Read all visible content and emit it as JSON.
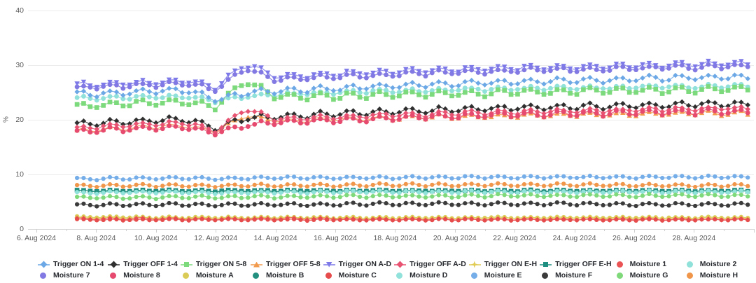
{
  "chart_data": {
    "type": "line",
    "title": "",
    "ylabel": "%",
    "ylim": [
      0,
      40
    ],
    "grid": "horizontal",
    "legend_position": "bottom",
    "y_ticks": [
      0,
      10,
      20,
      30,
      40
    ],
    "x_tick_days": [
      6,
      8,
      10,
      12,
      14,
      16,
      18,
      20,
      22,
      24,
      26,
      28
    ],
    "x_tick_labels": [
      "6. Aug 2024",
      "8. Aug 2024",
      "10. Aug 2024",
      "12. Aug 2024",
      "14. Aug 2024",
      "16. Aug 2024",
      "18. Aug 2024",
      "20. Aug 2024",
      "22. Aug 2024",
      "24. Aug 2024",
      "26. Aug 2024",
      "28. Aug 2024"
    ],
    "x_axis_range_days": [
      5.7,
      30.1
    ],
    "data_days": [
      7,
      8,
      9,
      10,
      11,
      12,
      13,
      14,
      15,
      16,
      17,
      18,
      19,
      20,
      21,
      22,
      23,
      24,
      25,
      26,
      27,
      28,
      29
    ],
    "data_start_day": 7.36,
    "data_end_day": 29.9,
    "marker_step_days": 0.22,
    "event_note": "spike in Trigger ON A-D / ON 5-8 / OFF A-D and dip in 1-4 series around 13. Aug 2024",
    "series": [
      {
        "name": "Trigger ON 1-4",
        "color": "#6BA8E5",
        "marker": "diamond",
        "legend_symbol": "line-marker",
        "daily_osc": 0.5,
        "values": [
          24.6,
          24.8,
          25.0,
          25.2,
          25.4,
          23.7,
          24.9,
          25.3,
          25.5,
          25.7,
          26.0,
          26.2,
          26.4,
          26.6,
          26.8,
          26.9,
          27.1,
          27.2,
          27.3,
          27.5,
          27.6,
          27.7,
          27.8
        ]
      },
      {
        "name": "Trigger OFF 1-4",
        "color": "#2F2F2F",
        "marker": "diamond",
        "legend_symbol": "line-marker",
        "daily_osc": 0.5,
        "values": [
          19.1,
          19.4,
          19.6,
          19.9,
          20.1,
          18.4,
          20.3,
          20.6,
          20.8,
          21.1,
          21.3,
          21.5,
          21.7,
          21.9,
          22.0,
          22.2,
          22.3,
          22.4,
          22.5,
          22.6,
          22.7,
          22.8,
          22.9
        ]
      },
      {
        "name": "Trigger ON 5-8",
        "color": "#7CD97C",
        "marker": "square",
        "legend_symbol": "line-marker",
        "daily_osc": 0.55,
        "values": [
          22.5,
          22.7,
          22.9,
          23.1,
          23.3,
          22.3,
          27.2,
          24.2,
          24.2,
          24.3,
          24.5,
          24.6,
          24.7,
          24.8,
          24.9,
          25.0,
          25.1,
          25.2,
          25.3,
          25.4,
          25.4,
          25.5,
          25.6
        ]
      },
      {
        "name": "Trigger OFF 5-8",
        "color": "#F29B4E",
        "marker": "triangle-up",
        "legend_symbol": "line-marker",
        "daily_osc": 0.4,
        "values": [
          17.9,
          18.2,
          18.5,
          18.7,
          18.9,
          17.8,
          20.9,
          19.8,
          19.9,
          20.1,
          20.2,
          20.4,
          20.5,
          20.6,
          20.7,
          20.8,
          20.9,
          21.0,
          21.0,
          21.1,
          21.1,
          21.2,
          21.2
        ]
      },
      {
        "name": "Trigger ON A-D",
        "color": "#7D79E8",
        "marker": "triangle-down",
        "legend_symbol": "line-marker",
        "daily_osc": 0.45,
        "values": [
          26.3,
          26.5,
          26.7,
          26.9,
          27.1,
          25.9,
          30.2,
          27.9,
          28.1,
          28.4,
          28.6,
          28.8,
          29.0,
          29.2,
          29.3,
          29.5,
          29.6,
          29.7,
          29.8,
          29.9,
          30.0,
          30.1,
          30.3
        ]
      },
      {
        "name": "Trigger OFF A-D",
        "color": "#E85372",
        "marker": "diamond",
        "legend_symbol": "line-marker",
        "daily_osc": 0.4,
        "values": [
          18.4,
          18.7,
          19.0,
          19.2,
          19.4,
          18.0,
          22.0,
          20.2,
          20.3,
          20.5,
          20.7,
          20.9,
          21.0,
          21.2,
          21.3,
          21.4,
          21.5,
          21.6,
          21.7,
          21.8,
          21.9,
          22.0,
          22.1
        ]
      },
      {
        "name": "Trigger ON E-H",
        "color": "#E0CC55",
        "marker": "star4",
        "legend_symbol": "line-marker",
        "daily_osc": 0.1,
        "values": [
          2.0,
          2.0,
          2.0,
          2.0,
          2.0,
          2.0,
          2.0,
          2.0,
          2.0,
          2.0,
          2.0,
          2.0,
          2.0,
          2.0,
          2.0,
          2.0,
          2.0,
          2.0,
          2.0,
          2.0,
          2.0,
          2.0,
          2.0
        ]
      },
      {
        "name": "Trigger OFF E-H",
        "color": "#1E8E80",
        "marker": "square",
        "legend_symbol": "line-marker",
        "daily_osc": 0.12,
        "values": [
          7.0,
          7.0,
          7.0,
          7.0,
          7.0,
          7.0,
          7.0,
          7.0,
          7.0,
          7.0,
          7.0,
          7.0,
          7.0,
          7.0,
          7.0,
          7.0,
          7.0,
          7.0,
          7.0,
          7.0,
          7.0,
          7.0,
          7.0
        ]
      },
      {
        "name": "Moisture 1",
        "color": "#EA5455",
        "marker": "star4",
        "legend_symbol": "circle",
        "daily_osc": 0.15,
        "values": [
          1.9,
          1.9,
          1.9,
          1.9,
          1.9,
          1.8,
          1.9,
          1.9,
          1.9,
          1.9,
          1.8,
          1.8,
          1.8,
          1.8,
          1.8,
          1.8,
          1.8,
          1.8,
          1.8,
          1.8,
          1.8,
          1.8,
          1.8
        ]
      },
      {
        "name": "Moisture 2",
        "color": "#8FE1D9",
        "marker": "circle",
        "legend_symbol": "circle",
        "daily_osc": 0.3,
        "values": [
          23.9,
          24.0,
          24.1,
          24.2,
          24.3,
          23.4,
          24.2,
          24.6,
          24.8,
          25.0,
          25.2,
          25.3,
          25.4,
          25.5,
          25.6,
          25.7,
          25.8,
          25.9,
          25.9,
          26.0,
          26.1,
          26.1,
          26.2
        ]
      },
      {
        "name": "Moisture 7",
        "color": "#8379E2",
        "marker": "circle",
        "legend_symbol": "circle",
        "daily_osc": 0.4,
        "values": [
          25.8,
          26.0,
          26.2,
          26.4,
          26.6,
          25.5,
          29.4,
          27.4,
          27.6,
          27.9,
          28.1,
          28.3,
          28.5,
          28.7,
          28.8,
          29.0,
          29.1,
          29.2,
          29.3,
          29.4,
          29.5,
          29.6,
          29.8
        ]
      },
      {
        "name": "Moisture 8",
        "color": "#E64A6E",
        "marker": "circle",
        "legend_symbol": "circle",
        "daily_osc": 0.45,
        "values": [
          17.7,
          18.0,
          18.3,
          18.5,
          18.7,
          17.6,
          19.0,
          19.5,
          19.7,
          19.9,
          20.1,
          20.3,
          20.5,
          20.6,
          20.8,
          20.9,
          21.0,
          21.1,
          21.2,
          21.3,
          21.4,
          21.4,
          21.5
        ]
      },
      {
        "name": "Moisture A",
        "color": "#D9CB55",
        "marker": "circle",
        "legend_symbol": "circle",
        "daily_osc": 0.12,
        "values": [
          2.2,
          2.2,
          2.2,
          2.1,
          2.1,
          2.1,
          2.1,
          2.1,
          2.1,
          2.1,
          2.1,
          2.1,
          2.1,
          2.1,
          2.1,
          2.1,
          2.1,
          2.1,
          2.1,
          2.1,
          2.1,
          2.1,
          2.1
        ]
      },
      {
        "name": "Moisture B",
        "color": "#23907F",
        "marker": "circle",
        "legend_symbol": "circle",
        "daily_osc": 0.15,
        "values": [
          6.9,
          6.9,
          6.9,
          6.9,
          6.9,
          6.9,
          6.9,
          6.9,
          6.9,
          6.9,
          6.9,
          6.9,
          6.9,
          6.9,
          6.9,
          6.9,
          7.0,
          7.0,
          7.0,
          7.0,
          7.0,
          7.0,
          7.0
        ]
      },
      {
        "name": "Moisture C",
        "color": "#E64C4C",
        "marker": "circle",
        "legend_symbol": "circle",
        "daily_osc": 0.12,
        "values": [
          1.7,
          1.7,
          1.7,
          1.7,
          1.7,
          1.7,
          1.7,
          1.7,
          1.7,
          1.7,
          1.7,
          1.7,
          1.7,
          1.7,
          1.7,
          1.7,
          1.7,
          1.7,
          1.7,
          1.7,
          1.7,
          1.7,
          1.7
        ]
      },
      {
        "name": "Moisture D",
        "color": "#90E2DB",
        "marker": "circle",
        "legend_symbol": "circle",
        "daily_osc": 0.2,
        "values": [
          6.6,
          6.6,
          6.7,
          6.7,
          6.7,
          6.6,
          6.7,
          6.7,
          6.7,
          6.8,
          6.8,
          6.8,
          6.8,
          6.8,
          6.8,
          6.8,
          6.8,
          6.8,
          6.8,
          6.8,
          6.8,
          6.8,
          6.8
        ]
      },
      {
        "name": "Moisture E",
        "color": "#74ADE8",
        "marker": "circle",
        "legend_symbol": "circle",
        "daily_osc": 0.22,
        "values": [
          9.2,
          9.2,
          9.3,
          9.3,
          9.3,
          9.2,
          9.3,
          9.4,
          9.4,
          9.4,
          9.4,
          9.4,
          9.5,
          9.5,
          9.5,
          9.5,
          9.5,
          9.5,
          9.5,
          9.5,
          9.5,
          9.5,
          9.5
        ]
      },
      {
        "name": "Moisture F",
        "color": "#3B3B3B",
        "marker": "circle",
        "legend_symbol": "circle",
        "daily_osc": 0.25,
        "values": [
          4.4,
          4.4,
          4.5,
          4.5,
          4.5,
          4.4,
          4.5,
          4.5,
          4.5,
          4.5,
          4.6,
          4.6,
          4.6,
          4.6,
          4.6,
          4.6,
          4.6,
          4.6,
          4.6,
          4.5,
          4.5,
          4.5,
          4.5
        ]
      },
      {
        "name": "Moisture G",
        "color": "#7FD97A",
        "marker": "circle",
        "legend_symbol": "circle",
        "daily_osc": 0.25,
        "values": [
          5.7,
          5.8,
          5.8,
          5.8,
          5.9,
          5.8,
          5.9,
          5.9,
          5.9,
          6.0,
          6.0,
          6.0,
          6.0,
          6.0,
          6.1,
          6.1,
          6.1,
          6.1,
          6.1,
          6.1,
          6.1,
          6.1,
          6.1
        ]
      },
      {
        "name": "Moisture H",
        "color": "#F0964B",
        "marker": "circle",
        "legend_symbol": "circle",
        "daily_osc": 0.25,
        "values": [
          7.9,
          7.9,
          8.0,
          8.0,
          8.0,
          7.9,
          8.0,
          8.0,
          8.0,
          8.0,
          8.1,
          8.1,
          8.1,
          8.1,
          8.1,
          8.1,
          8.1,
          8.1,
          8.1,
          8.0,
          8.0,
          8.0,
          8.0
        ]
      }
    ],
    "plot_order": [
      "Trigger OFF 5-8",
      "Trigger OFF 1-4",
      "Trigger OFF A-D",
      "Moisture 8",
      "Moisture 2",
      "Trigger ON 5-8",
      "Trigger ON 1-4",
      "Moisture 7",
      "Trigger ON A-D",
      "Trigger OFF E-H",
      "Moisture B",
      "Moisture D",
      "Moisture G",
      "Moisture F",
      "Moisture H",
      "Moisture E",
      "Moisture A",
      "Trigger ON E-H",
      "Moisture 1",
      "Moisture C"
    ],
    "legend_rows": [
      [
        "Trigger ON 1-4",
        "Trigger OFF 1-4",
        "Trigger ON 5-8",
        "Trigger OFF 5-8",
        "Trigger ON A-D",
        "Trigger OFF A-D",
        "Trigger ON E-H",
        "Trigger OFF E-H",
        "Moisture 1",
        "Moisture 2"
      ],
      [
        "Moisture 7",
        "Moisture 8",
        "Moisture A",
        "Moisture B",
        "Moisture C",
        "Moisture D",
        "Moisture E",
        "Moisture F",
        "Moisture G",
        "Moisture H"
      ]
    ]
  },
  "colors": {
    "grid_line": "#ececec",
    "axis_line": "#d9d9d9",
    "tick_mark": "#cfcfcf",
    "tick_text": "#5b5b5b",
    "legend_text": "#26292e",
    "background": "#ffffff"
  }
}
